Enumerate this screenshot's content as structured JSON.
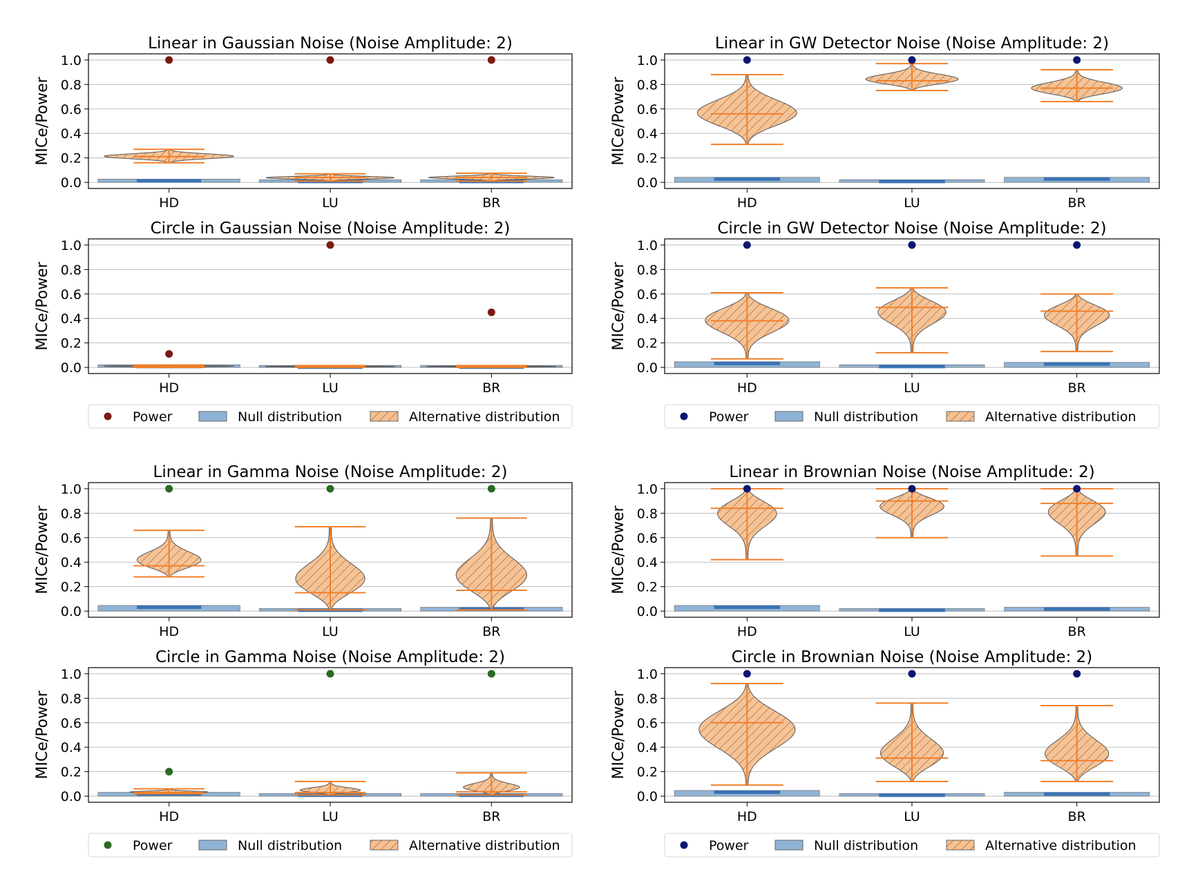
{
  "figure": {
    "categories": [
      "HD",
      "LU",
      "BR"
    ],
    "ylabel": "MICe/Power",
    "y_ticks": [
      "0.0",
      "0.2",
      "0.4",
      "0.6",
      "0.8",
      "1.0"
    ],
    "legend_labels": [
      "Power",
      "Null distribution",
      "Alternative distribution"
    ]
  },
  "colors": {
    "gaussian_power": "#7a1a12",
    "gw_power": "#0c1670",
    "gamma_power": "#2a6a23",
    "brownian_power": "#0c1670",
    "null_fill": "#8fb3d6",
    "null_bar": "#3b73b5",
    "alt_fill": "#f6c08f",
    "alt_line": "#f07f2a",
    "grid": "#bdbdbd"
  },
  "chart_data": [
    {
      "type": "violin",
      "title": "Linear in Gaussian Noise (Noise Amplitude: 2)",
      "ylim": [
        -0.05,
        1.05
      ],
      "power_color": "gaussian_power",
      "power": [
        1.0,
        1.0,
        1.0
      ],
      "alt": [
        {
          "min": 0.16,
          "max": 0.27,
          "mean": 0.21,
          "peak": 0.21,
          "width": 0.8
        },
        {
          "min": 0.01,
          "max": 0.07,
          "mean": 0.04,
          "peak": 0.035,
          "width": 0.8
        },
        {
          "min": 0.01,
          "max": 0.075,
          "mean": 0.04,
          "peak": 0.035,
          "width": 0.8
        }
      ],
      "null": [
        0.015,
        0.01,
        0.01
      ]
    },
    {
      "type": "violin",
      "title": "Linear in GW Detector Noise (Noise Amplitude: 2)",
      "ylim": [
        -0.05,
        1.05
      ],
      "power_color": "gw_power",
      "power": [
        1.0,
        1.0,
        1.0
      ],
      "alt": [
        {
          "min": 0.31,
          "max": 0.88,
          "mean": 0.56,
          "peak": 0.53,
          "width": 0.62
        },
        {
          "min": 0.75,
          "max": 0.97,
          "mean": 0.83,
          "peak": 0.82,
          "width": 0.62
        },
        {
          "min": 0.66,
          "max": 0.92,
          "mean": 0.77,
          "peak": 0.74,
          "width": 0.62
        }
      ],
      "null": [
        0.03,
        0.01,
        0.03
      ]
    },
    {
      "type": "violin",
      "title": "Circle in Gaussian Noise (Noise Amplitude: 2)",
      "ylim": [
        -0.05,
        1.05
      ],
      "power_color": "gaussian_power",
      "power": [
        0.11,
        1.0,
        0.45
      ],
      "alt": [
        {
          "min": 0.0,
          "max": 0.02,
          "mean": 0.01,
          "peak": 0.01,
          "width": 0.8
        },
        {
          "min": 0.0,
          "max": 0.015,
          "mean": 0.008,
          "peak": 0.008,
          "width": 0.8
        },
        {
          "min": 0.0,
          "max": 0.015,
          "mean": 0.008,
          "peak": 0.008,
          "width": 0.8
        }
      ],
      "null": [
        0.01,
        0.005,
        0.005
      ]
    },
    {
      "type": "violin",
      "title": "Circle in GW Detector Noise (Noise Amplitude: 2)",
      "ylim": [
        -0.05,
        1.05
      ],
      "power_color": "gw_power",
      "power": [
        1.0,
        1.0,
        1.0
      ],
      "alt": [
        {
          "min": 0.07,
          "max": 0.61,
          "mean": 0.38,
          "peak": 0.45,
          "width": 0.58
        },
        {
          "min": 0.12,
          "max": 0.65,
          "mean": 0.49,
          "peak": 0.55,
          "width": 0.58
        },
        {
          "min": 0.13,
          "max": 0.6,
          "mean": 0.46,
          "peak": 0.52,
          "width": 0.58
        }
      ],
      "null": [
        0.035,
        0.01,
        0.03
      ]
    },
    {
      "type": "violin",
      "title": "Linear in Gamma Noise (Noise Amplitude: 2)",
      "ylim": [
        -0.05,
        1.05
      ],
      "power_color": "gamma_power",
      "power": [
        1.0,
        1.0,
        1.0
      ],
      "alt": [
        {
          "min": 0.28,
          "max": 0.66,
          "mean": 0.37,
          "peak": 0.34,
          "width": 0.6
        },
        {
          "min": 0.01,
          "max": 0.69,
          "mean": 0.15,
          "peak": 0.14,
          "width": 0.6
        },
        {
          "min": 0.01,
          "max": 0.76,
          "mean": 0.17,
          "peak": 0.16,
          "width": 0.6
        }
      ],
      "null": [
        0.035,
        0.01,
        0.02
      ]
    },
    {
      "type": "violin",
      "title": "Linear in Brownian Noise (Noise Amplitude: 2)",
      "ylim": [
        -0.05,
        1.05
      ],
      "power_color": "brownian_power",
      "power": [
        1.0,
        1.0,
        1.0
      ],
      "alt": [
        {
          "min": 0.42,
          "max": 1.0,
          "mean": 0.84,
          "peak": 0.93,
          "width": 0.6
        },
        {
          "min": 0.6,
          "max": 1.0,
          "mean": 0.9,
          "peak": 0.94,
          "width": 0.6
        },
        {
          "min": 0.45,
          "max": 1.0,
          "mean": 0.88,
          "peak": 0.94,
          "width": 0.6
        }
      ],
      "null": [
        0.035,
        0.01,
        0.02
      ]
    },
    {
      "type": "violin",
      "title": "Circle in Gamma Noise (Noise Amplitude: 2)",
      "ylim": [
        -0.05,
        1.05
      ],
      "power_color": "gamma_power",
      "power": [
        0.2,
        1.0,
        1.0
      ],
      "alt": [
        {
          "min": 0.02,
          "max": 0.06,
          "mean": 0.03,
          "peak": 0.025,
          "width": 0.8
        },
        {
          "min": 0.01,
          "max": 0.12,
          "mean": 0.03,
          "peak": 0.025,
          "width": 0.6
        },
        {
          "min": 0.01,
          "max": 0.19,
          "mean": 0.035,
          "peak": 0.03,
          "width": 0.6
        }
      ],
      "null": [
        0.02,
        0.01,
        0.01
      ]
    },
    {
      "type": "violin",
      "title": "Circle in Brownian Noise (Noise Amplitude: 2)",
      "ylim": [
        -0.05,
        1.05
      ],
      "power_color": "brownian_power",
      "power": [
        1.0,
        1.0,
        1.0
      ],
      "alt": [
        {
          "min": 0.09,
          "max": 0.92,
          "mean": 0.6,
          "peak": 0.6,
          "width": 0.6
        },
        {
          "min": 0.12,
          "max": 0.76,
          "mean": 0.31,
          "peak": 0.22,
          "width": 0.58
        },
        {
          "min": 0.12,
          "max": 0.74,
          "mean": 0.29,
          "peak": 0.22,
          "width": 0.58
        }
      ],
      "null": [
        0.035,
        0.01,
        0.02
      ]
    }
  ]
}
